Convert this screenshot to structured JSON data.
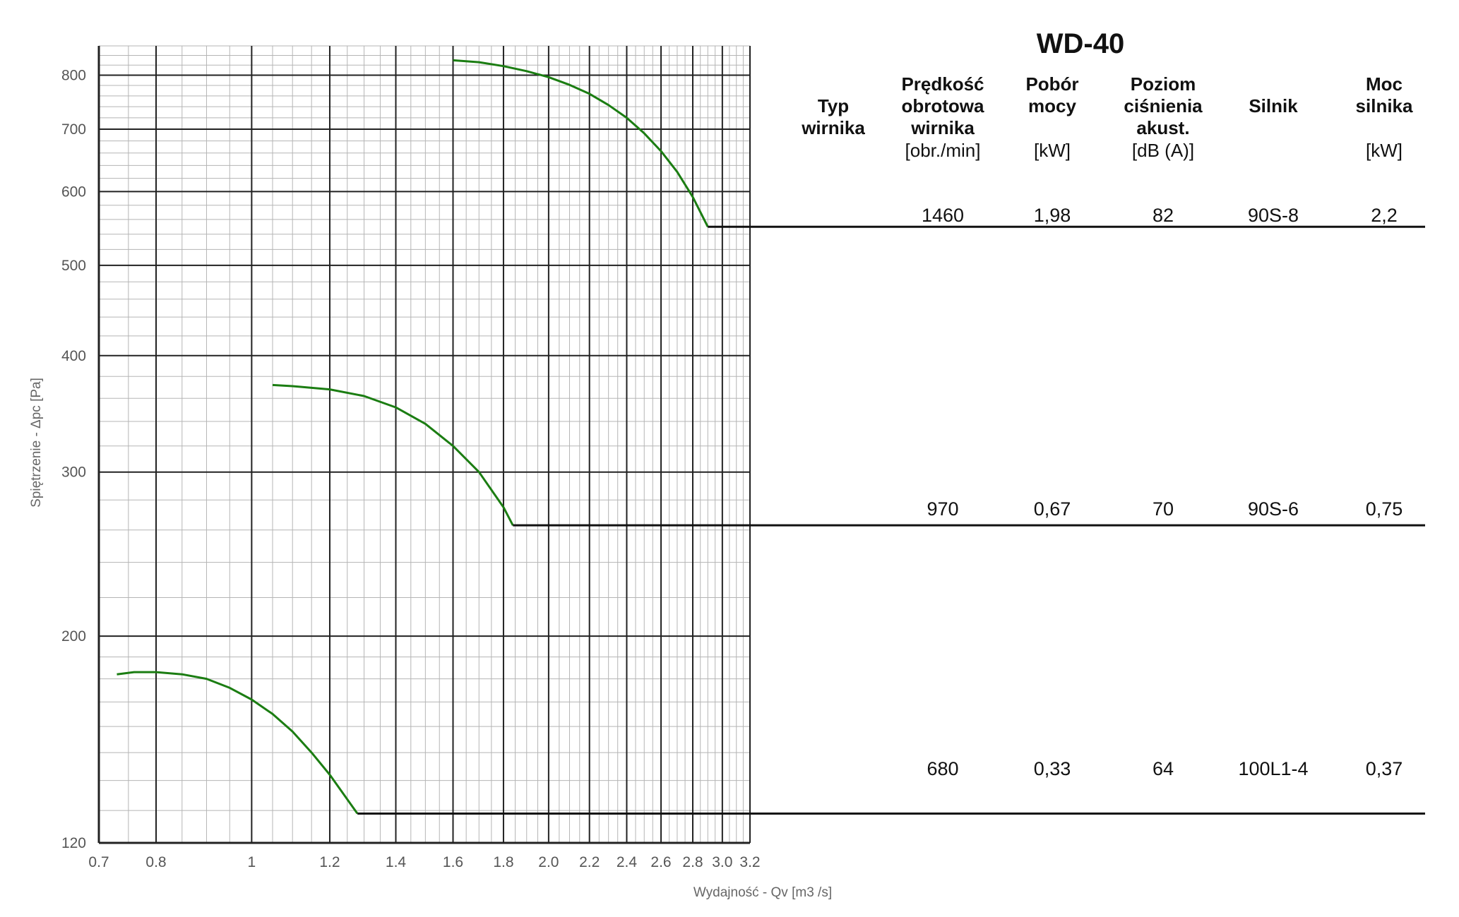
{
  "chart_data": {
    "type": "line",
    "title": "WD-40",
    "xlabel": "Wydajność - Qv [m3 /s]",
    "ylabel": "Spiętrzenie - Δpc [Pa]",
    "xscale": "log",
    "yscale": "log",
    "xlim": [
      0.7,
      3.2
    ],
    "ylim": [
      120,
      860
    ],
    "grid": true,
    "xticks": [
      "0.7",
      "0.8",
      "1",
      "1.2",
      "1.4",
      "1.6",
      "1.8",
      "2.0",
      "2.2",
      "2.4",
      "2.6",
      "2.8",
      "3.0",
      "3.2"
    ],
    "yticks": [
      "800",
      "700",
      "600",
      "500",
      "400",
      "300",
      "200",
      "120"
    ],
    "series": [
      {
        "x": [
          1.6,
          1.7,
          1.8,
          1.9,
          2.0,
          2.1,
          2.2,
          2.3,
          2.4,
          2.5,
          2.6,
          2.7,
          2.8,
          2.9
        ],
        "y": [
          830,
          826,
          818,
          808,
          796,
          781,
          764,
          743,
          720,
          693,
          663,
          630,
          592,
          550
        ]
      },
      {
        "x": [
          1.05,
          1.1,
          1.2,
          1.3,
          1.4,
          1.5,
          1.6,
          1.7,
          1.8,
          1.84
        ],
        "y": [
          372,
          371,
          368,
          362,
          352,
          338,
          320,
          300,
          275,
          263
        ]
      },
      {
        "x": [
          0.73,
          0.76,
          0.8,
          0.85,
          0.9,
          0.95,
          1.0,
          1.05,
          1.1,
          1.15,
          1.2,
          1.28
        ],
        "y": [
          182,
          183,
          183,
          182,
          180,
          176,
          171,
          165,
          158,
          150,
          142,
          129
        ]
      }
    ],
    "levels": [
      550,
      263,
      129
    ],
    "line_color": "#1b7d12"
  },
  "table": {
    "headers": [
      {
        "h": [
          "Typ",
          "wirnika"
        ],
        "u": ""
      },
      {
        "h": [
          "Prędkość",
          "obrotowa",
          "wirnika"
        ],
        "u": "[obr./min]"
      },
      {
        "h": [
          "Pobór",
          "mocy"
        ],
        "u": "[kW]"
      },
      {
        "h": [
          "Poziom",
          "ciśnienia",
          "akust."
        ],
        "u": "[dB (A)]"
      },
      {
        "h": [
          "Silnik"
        ],
        "u": ""
      },
      {
        "h": [
          "Moc",
          "silnika"
        ],
        "u": "[kW]"
      }
    ],
    "rows": [
      [
        "1460",
        "1,98",
        "82",
        "90S-8",
        "2,2"
      ],
      [
        "970",
        "0,67",
        "70",
        "90S-6",
        "0,75"
      ],
      [
        "680",
        "0,33",
        "64",
        "100L1-4",
        "0,37"
      ]
    ]
  }
}
